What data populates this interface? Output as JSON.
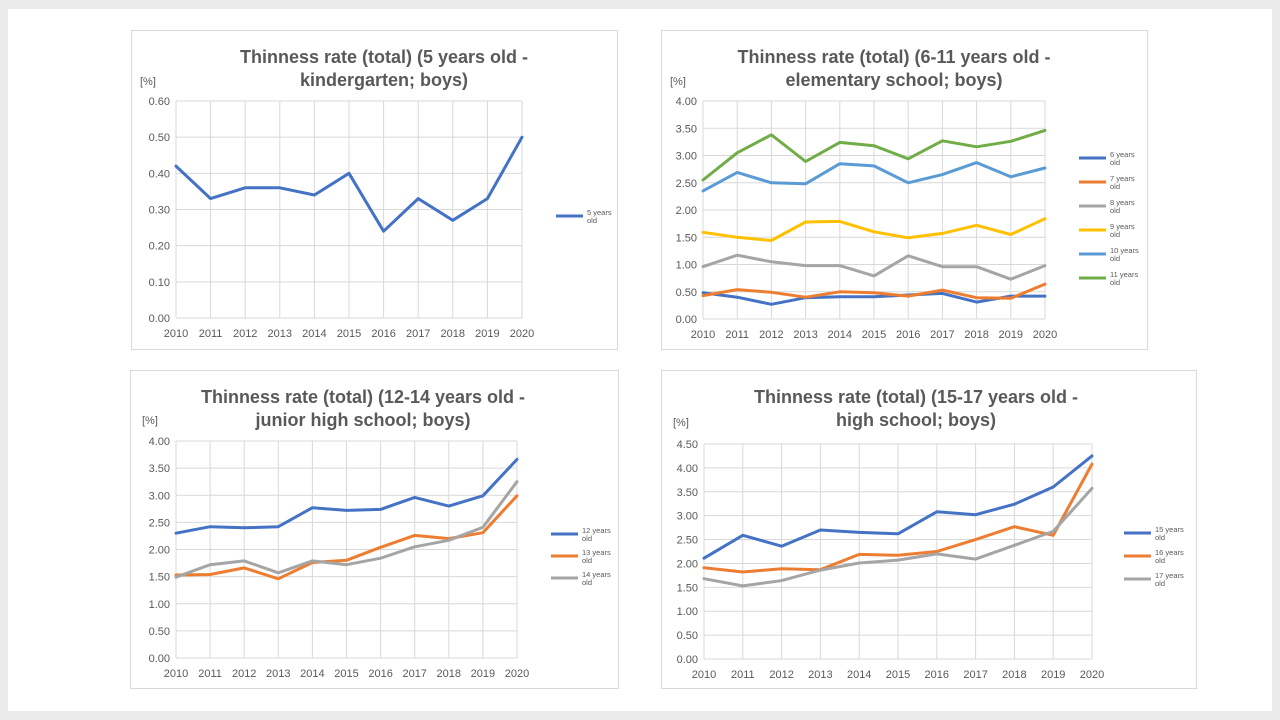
{
  "colors": {
    "blue": "#4472c4",
    "orange": "#ed7d31",
    "gray": "#a5a5a5",
    "yellow": "#ffc000",
    "lightblue": "#5b9bd5",
    "green": "#70ad47"
  },
  "chart_data": [
    {
      "type": "line",
      "title": [
        "Thinness rate (total) (5 years old -",
        "kindergarten; boys)"
      ],
      "ylabel": "[%]",
      "ylim": [
        0,
        0.6
      ],
      "y_ticks": [
        "0.00",
        "0.10",
        "0.20",
        "0.30",
        "0.40",
        "0.50",
        "0.60"
      ],
      "x": [
        "2010",
        "2011",
        "2012",
        "2013",
        "2014",
        "2015",
        "2016",
        "2017",
        "2018",
        "2019",
        "2020"
      ],
      "grid": true,
      "legend": "right",
      "series": [
        {
          "name": [
            "5 years",
            "old"
          ],
          "color": "#4472c4",
          "values": [
            0.42,
            0.33,
            0.36,
            0.36,
            0.34,
            0.4,
            0.24,
            0.33,
            0.27,
            0.33,
            0.5
          ]
        }
      ]
    },
    {
      "type": "line",
      "title": [
        "Thinness rate (total) (6-11 years old -",
        "elementary school; boys)"
      ],
      "ylabel": "[%]",
      "ylim": [
        0,
        4
      ],
      "y_ticks": [
        "0.00",
        "0.50",
        "1.00",
        "1.50",
        "2.00",
        "2.50",
        "3.00",
        "3.50",
        "4.00"
      ],
      "x": [
        "2010",
        "2011",
        "2012",
        "2013",
        "2014",
        "2015",
        "2016",
        "2017",
        "2018",
        "2019",
        "2020"
      ],
      "grid": true,
      "legend": "right",
      "series": [
        {
          "name": [
            "6 years",
            "old"
          ],
          "color": "#4472c4",
          "values": [
            0.48,
            0.4,
            0.27,
            0.39,
            0.41,
            0.41,
            0.44,
            0.47,
            0.31,
            0.42,
            0.42
          ]
        },
        {
          "name": [
            "7 years",
            "old"
          ],
          "color": "#ed7d31",
          "values": [
            0.43,
            0.54,
            0.49,
            0.4,
            0.5,
            0.48,
            0.42,
            0.53,
            0.39,
            0.38,
            0.64
          ]
        },
        {
          "name": [
            "8 years",
            "old"
          ],
          "color": "#a5a5a5",
          "values": [
            0.96,
            1.17,
            1.05,
            0.98,
            0.98,
            0.79,
            1.16,
            0.96,
            0.96,
            0.73,
            0.98
          ]
        },
        {
          "name": [
            "9 years",
            "old"
          ],
          "color": "#ffc000",
          "values": [
            1.59,
            1.5,
            1.44,
            1.78,
            1.79,
            1.6,
            1.49,
            1.57,
            1.72,
            1.55,
            1.84
          ]
        },
        {
          "name": [
            "10 years",
            "old"
          ],
          "color": "#5b9bd5",
          "values": [
            2.35,
            2.69,
            2.5,
            2.48,
            2.85,
            2.81,
            2.5,
            2.65,
            2.87,
            2.61,
            2.77
          ]
        },
        {
          "name": [
            "11 years",
            "old"
          ],
          "color": "#70ad47",
          "values": [
            2.55,
            3.05,
            3.38,
            2.89,
            3.24,
            3.18,
            2.94,
            3.27,
            3.16,
            3.26,
            3.46
          ]
        }
      ]
    },
    {
      "type": "line",
      "title": [
        "Thinness rate (total) (12-14 years old -",
        "junior high school; boys)"
      ],
      "ylabel": "[%]",
      "ylim": [
        0,
        4
      ],
      "y_ticks": [
        "0.00",
        "0.50",
        "1.00",
        "1.50",
        "2.00",
        "2.50",
        "3.00",
        "3.50",
        "4.00"
      ],
      "x": [
        "2010",
        "2011",
        "2012",
        "2013",
        "2014",
        "2015",
        "2016",
        "2017",
        "2018",
        "2019",
        "2020"
      ],
      "grid": true,
      "legend": "right",
      "series": [
        {
          "name": [
            "12 years",
            "old"
          ],
          "color": "#4472c4",
          "values": [
            2.3,
            2.42,
            2.4,
            2.42,
            2.77,
            2.72,
            2.74,
            2.96,
            2.8,
            2.99,
            3.66
          ]
        },
        {
          "name": [
            "13 years",
            "old"
          ],
          "color": "#ed7d31",
          "values": [
            1.53,
            1.54,
            1.66,
            1.46,
            1.76,
            1.8,
            2.04,
            2.26,
            2.2,
            2.31,
            2.99
          ]
        },
        {
          "name": [
            "14 years",
            "old"
          ],
          "color": "#a5a5a5",
          "values": [
            1.49,
            1.72,
            1.79,
            1.57,
            1.79,
            1.72,
            1.84,
            2.05,
            2.17,
            2.41,
            3.25
          ]
        }
      ]
    },
    {
      "type": "line",
      "title": [
        "Thinness rate (total) (15-17 years old -",
        "high school; boys)"
      ],
      "ylabel": "[%]",
      "ylim": [
        0,
        4.5
      ],
      "y_ticks": [
        "0.00",
        "0.50",
        "1.00",
        "1.50",
        "2.00",
        "2.50",
        "3.00",
        "3.50",
        "4.00",
        "4.50"
      ],
      "x": [
        "2010",
        "2011",
        "2012",
        "2013",
        "2014",
        "2015",
        "2016",
        "2017",
        "2018",
        "2019",
        "2020"
      ],
      "grid": true,
      "legend": "right",
      "series": [
        {
          "name": [
            "15 years",
            "old"
          ],
          "color": "#4472c4",
          "values": [
            2.11,
            2.59,
            2.36,
            2.7,
            2.65,
            2.62,
            3.08,
            3.02,
            3.24,
            3.6,
            4.25
          ]
        },
        {
          "name": [
            "16 years",
            "old"
          ],
          "color": "#ed7d31",
          "values": [
            1.91,
            1.82,
            1.89,
            1.87,
            2.19,
            2.17,
            2.25,
            2.5,
            2.77,
            2.59,
            4.08
          ]
        },
        {
          "name": [
            "17 years",
            "old"
          ],
          "color": "#a5a5a5",
          "values": [
            1.68,
            1.53,
            1.64,
            1.86,
            2.01,
            2.07,
            2.2,
            2.09,
            2.38,
            2.67,
            3.57
          ]
        }
      ]
    }
  ]
}
